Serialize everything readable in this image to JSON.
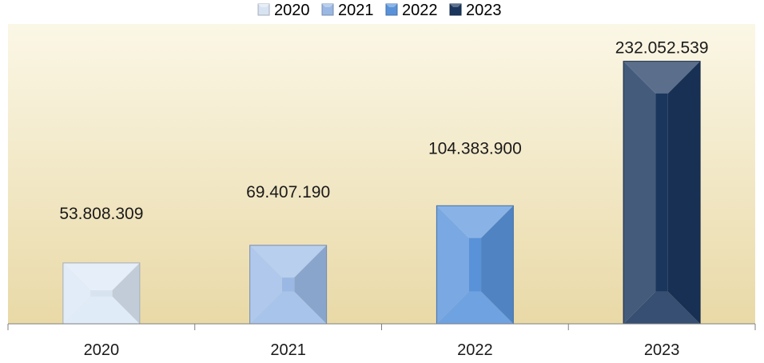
{
  "chart_data": {
    "type": "bar",
    "categories": [
      "2020",
      "2021",
      "2022",
      "2023"
    ],
    "values": [
      53808309,
      69407190,
      104383900,
      232052539
    ],
    "value_labels": [
      "53.808.309",
      "69.407.190",
      "104.383.900",
      "232.052.539"
    ],
    "title": "",
    "xlabel": "",
    "ylabel": "",
    "ylim": [
      0,
      265000000
    ],
    "grid": false,
    "legend": {
      "placement": "top-center",
      "entries": [
        "2020",
        "2021",
        "2022",
        "2023"
      ]
    },
    "colors": {
      "2020": "#dce8f7",
      "2021": "#9dbce8",
      "2022": "#5b95dd",
      "2023": "#1b375f"
    },
    "plot_background": {
      "top": "#fbf7e6",
      "bottom": "#e9d9a7"
    }
  }
}
